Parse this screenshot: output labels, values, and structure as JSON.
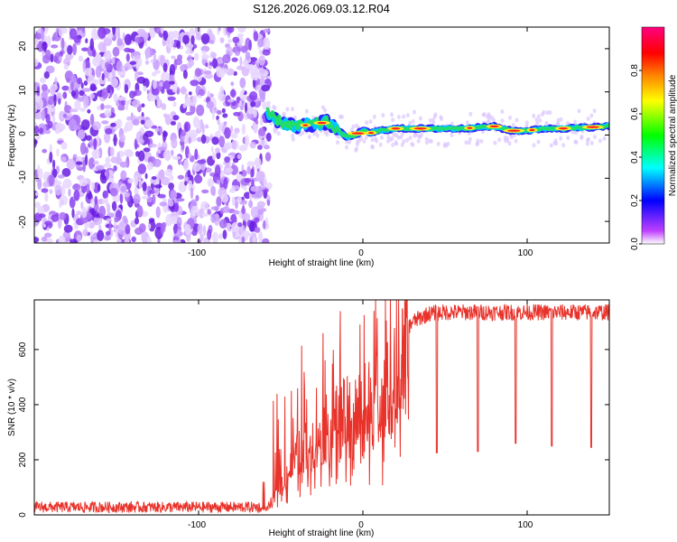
{
  "title": "S126.2026.069.03.12.R04",
  "chart_data": [
    {
      "type": "heatmap",
      "xlabel": "Height of straight line (km)",
      "ylabel": "Frequency (Hz)",
      "xlim": [
        -200,
        150
      ],
      "ylim": [
        -25,
        25
      ],
      "xticks": [
        -100,
        0,
        100
      ],
      "xtick_labels": [
        "-100",
        "0",
        "100"
      ],
      "yticks": [
        -20,
        -10,
        0,
        10,
        20
      ],
      "ytick_labels": [
        "-20",
        "-10",
        "0",
        "10",
        "20"
      ],
      "noise_region_x": [
        -200,
        -57
      ],
      "signal_track": {
        "x": [
          -58,
          -50,
          -40,
          -30,
          -22,
          -15,
          -10,
          -5,
          0,
          5,
          10,
          20,
          40,
          60,
          80,
          90,
          100,
          110,
          120,
          150
        ],
        "frequency": [
          5,
          3,
          2,
          2.5,
          3,
          1,
          -0.5,
          0,
          1,
          0.5,
          1,
          1.5,
          1.5,
          1.5,
          2,
          1,
          1,
          1.5,
          1.5,
          2
        ]
      },
      "colorbar": {
        "label": "Normalized spectral amplitude",
        "range": [
          0,
          1
        ],
        "ticks": [
          0.0,
          0.2,
          0.4,
          0.6,
          0.8
        ],
        "tick_labels": [
          "0.0",
          "0.2",
          "0.4",
          "0.6",
          "0.8"
        ],
        "colors": [
          "#ffffff",
          "#bf40ff",
          "#0000ff",
          "#00ffff",
          "#00ff00",
          "#ffff00",
          "#ff8000",
          "#ff0000",
          "#ff0080"
        ]
      }
    },
    {
      "type": "line",
      "xlabel": "Height of straight line (km)",
      "ylabel": "SNR (10 * v/v)",
      "xlim": [
        -200,
        150
      ],
      "ylim": [
        0,
        780
      ],
      "xticks": [
        -100,
        0,
        100
      ],
      "xtick_labels": [
        "-100",
        "0",
        "100"
      ],
      "yticks": [
        0,
        200,
        400,
        600
      ],
      "ytick_labels": [
        "0",
        "200",
        "400",
        "600"
      ],
      "color": "#e8322a",
      "series": [
        {
          "name": "SNR",
          "envelope_x": [
            -200,
            -62,
            -58,
            -50,
            -40,
            -30,
            -20,
            -10,
            0,
            10,
            20,
            25,
            30,
            40,
            50,
            150
          ],
          "envelope_y": [
            25,
            25,
            30,
            120,
            250,
            320,
            380,
            420,
            460,
            520,
            580,
            650,
            700,
            730,
            735,
            735
          ],
          "dropouts_x": [
            45,
            70,
            93,
            115,
            139
          ],
          "dropouts_y": [
            225,
            230,
            260,
            250,
            245
          ]
        }
      ]
    }
  ]
}
